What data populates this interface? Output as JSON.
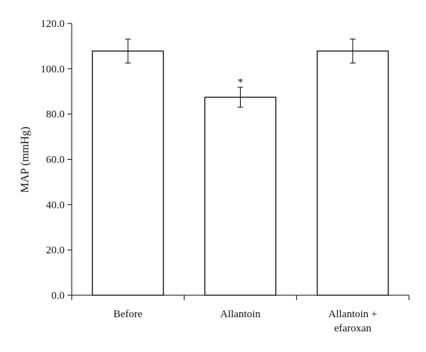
{
  "chart_data": {
    "type": "bar",
    "categories": [
      [
        "Before"
      ],
      [
        "Allantoin"
      ],
      [
        "Allantoin +",
        "efaroxan"
      ]
    ],
    "values": [
      107.8,
      87.4,
      107.8
    ],
    "errors": [
      5.3,
      4.4,
      5.3
    ],
    "significance": [
      "",
      "*",
      ""
    ],
    "ylabel": "MAP (mmHg)",
    "ylim": [
      0,
      120
    ],
    "yticks": [
      "0.0",
      "20.0",
      "40.0",
      "60.0",
      "80.0",
      "100.0",
      "120.0"
    ],
    "ytick_values": [
      0,
      20,
      40,
      60,
      80,
      100,
      120
    ],
    "grid": false,
    "bar_fill": "#ffffff",
    "bar_stroke": "#000000"
  }
}
